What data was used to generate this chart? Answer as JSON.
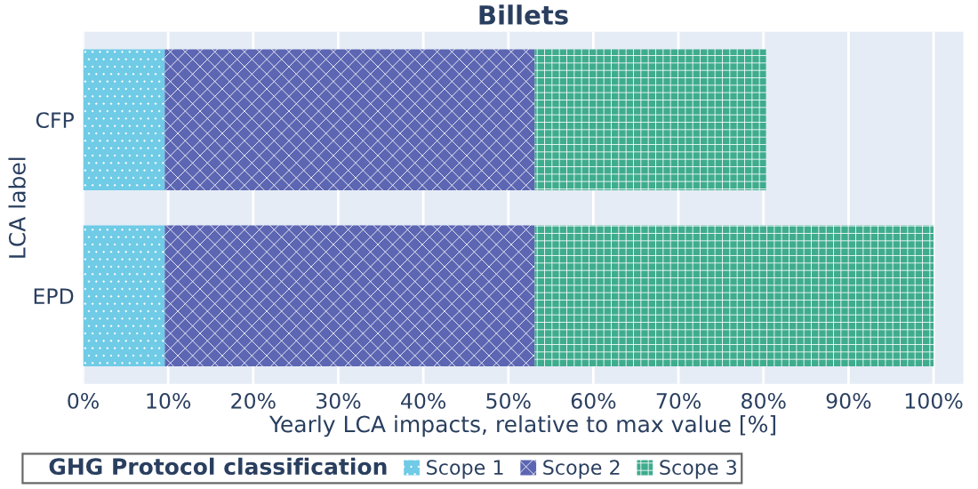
{
  "chart_data": {
    "type": "bar",
    "orientation": "horizontal",
    "stacked": true,
    "title": "Billets",
    "xlabel": "Yearly LCA impacts, relative to max value [%]",
    "ylabel": "LCA label",
    "legend_title": "GHG Protocol classification",
    "categories": [
      "CFP",
      "EPD"
    ],
    "series": [
      {
        "name": "Scope 1",
        "color": "#6fcbe6",
        "values": [
          9.6,
          9.6
        ]
      },
      {
        "name": "Scope 2",
        "color": "#5c66b2",
        "values": [
          43.5,
          43.5
        ]
      },
      {
        "name": "Scope 3",
        "color": "#3fac8e",
        "values": [
          27.2,
          46.9
        ]
      }
    ],
    "xlim": [
      0,
      103.5
    ],
    "xticks": [
      {
        "value": 0,
        "label": "0%"
      },
      {
        "value": 10,
        "label": "10%"
      },
      {
        "value": 20,
        "label": "20%"
      },
      {
        "value": 30,
        "label": "30%"
      },
      {
        "value": 40,
        "label": "40%"
      },
      {
        "value": 50,
        "label": "50%"
      },
      {
        "value": 60,
        "label": "60%"
      },
      {
        "value": 70,
        "label": "70%"
      },
      {
        "value": 80,
        "label": "80%"
      },
      {
        "value": 90,
        "label": "90%"
      },
      {
        "value": 100,
        "label": "100%"
      }
    ],
    "grid": "x",
    "legend": "bottom"
  }
}
